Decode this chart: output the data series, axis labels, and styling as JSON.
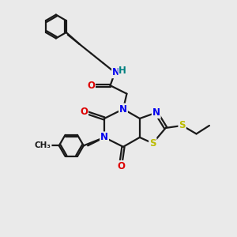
{
  "bg_color": "#eaeaea",
  "bond_color": "#1a1a1a",
  "bond_width": 1.6,
  "dbo": 0.06,
  "atom_colors": {
    "N": "#0000ee",
    "O": "#dd0000",
    "S": "#bbbb00",
    "H": "#008080",
    "C": "#1a1a1a"
  },
  "fs": 8.5,
  "fss": 7.5
}
